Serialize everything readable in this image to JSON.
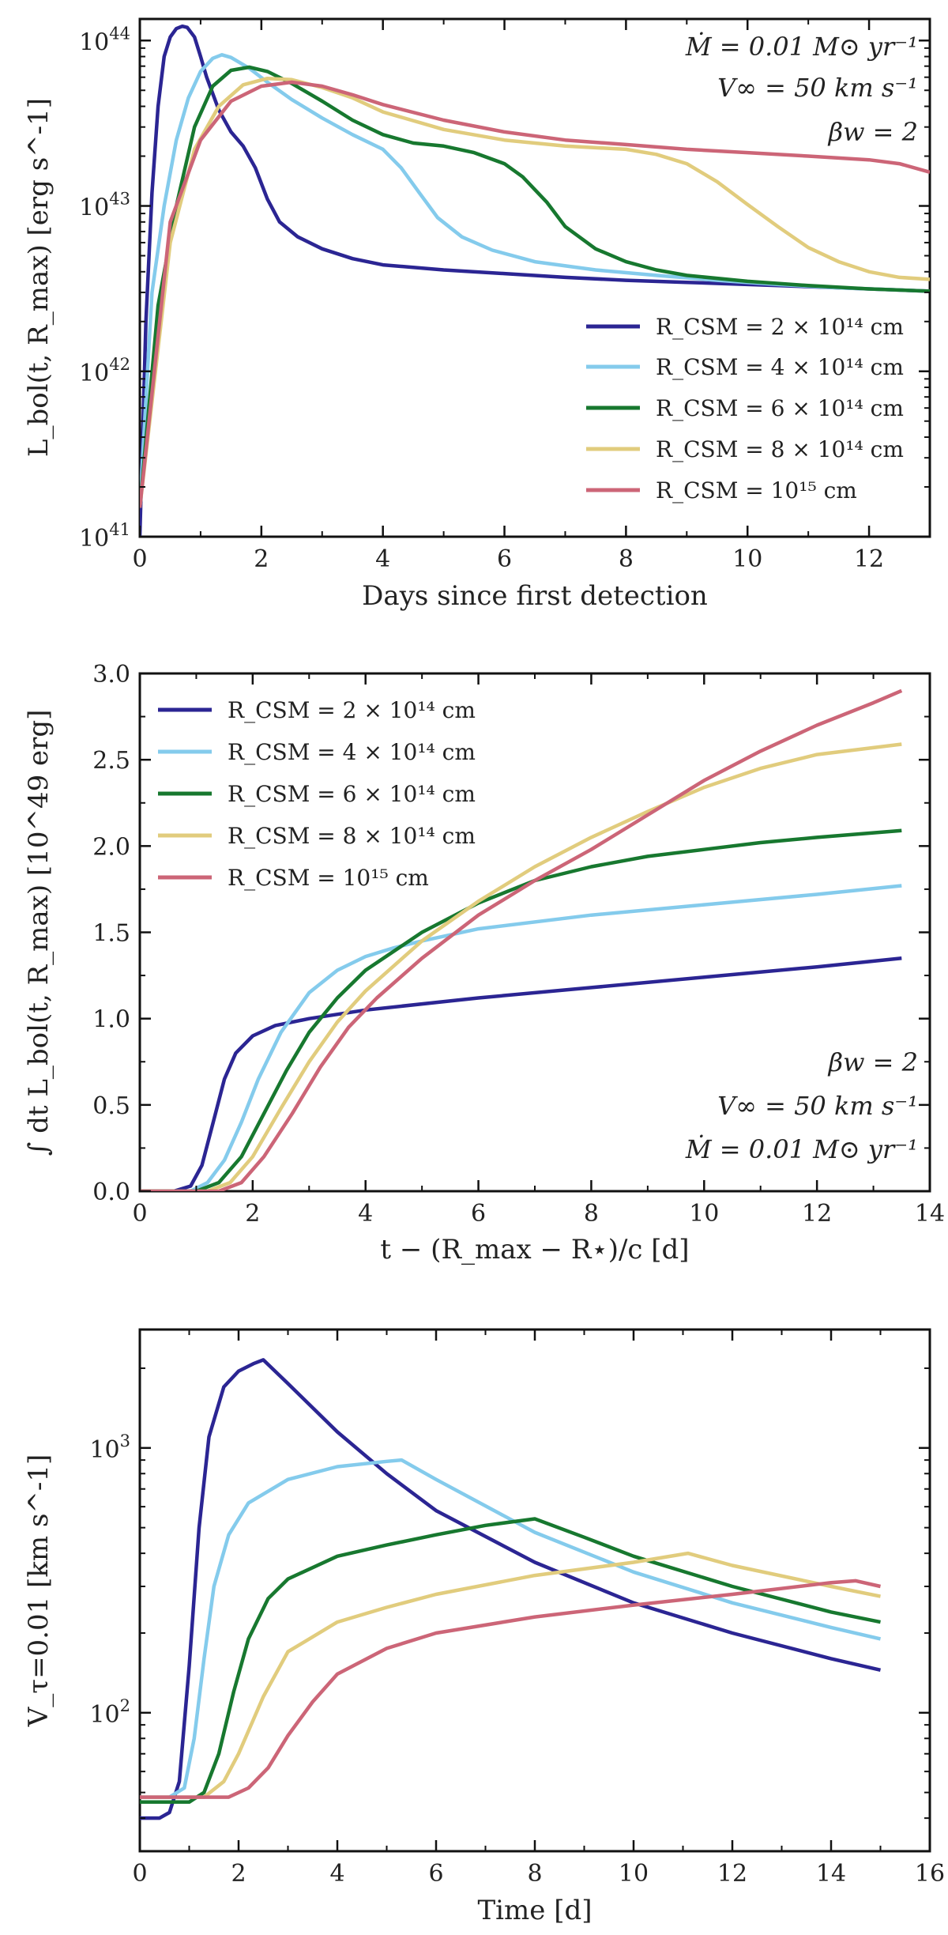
{
  "colors": {
    "navy": "#2b2593",
    "sky": "#84cbec",
    "green": "#17782f",
    "sand": "#e1cc7d",
    "rose": "#cc6577"
  },
  "chart_data": [
    {
      "type": "line",
      "yscale": "log",
      "xlabel": "Days since first detection",
      "ylabel": "L_bol(t, R_max) [erg s^-1]",
      "xlim": [
        0,
        13
      ],
      "ylim": [
        1e+41,
        1.35e+44
      ],
      "xticks": [
        "0",
        "2",
        "4",
        "6",
        "8",
        "10",
        "12"
      ],
      "yticks": [
        {
          "base": "10",
          "exp": "41",
          "value": 1e+41
        },
        {
          "base": "10",
          "exp": "42",
          "value": 1e+42
        },
        {
          "base": "10",
          "exp": "43",
          "value": 1e+43
        },
        {
          "base": "10",
          "exp": "44",
          "value": 1e+44
        }
      ],
      "legend_position": "right",
      "annotations": [
        "Ṁ = 0.01 M⊙ yr⁻¹",
        "V∞ = 50 km s⁻¹",
        "βw = 2"
      ],
      "series": [
        {
          "name": "R_CSM = 2 × 10¹⁴ cm",
          "color": "navy",
          "x": [
            0,
            0.1,
            0.2,
            0.3,
            0.4,
            0.5,
            0.6,
            0.7,
            0.78,
            0.9,
            1.0,
            1.1,
            1.3,
            1.5,
            1.7,
            1.9,
            2.1,
            2.3,
            2.6,
            3.0,
            3.5,
            4.0,
            5.0,
            6.0,
            7.0,
            8.0,
            9.0,
            10.0,
            11.0,
            12.0,
            13.0
          ],
          "y": [
            1e+41,
            2e+42,
            1.2e+43,
            4e+43,
            8e+43,
            1.05e+44,
            1.18e+44,
            1.22e+44,
            1.2e+44,
            1.05e+44,
            8e+43,
            6e+43,
            3.8e+43,
            2.8e+43,
            2.3e+43,
            1.7e+43,
            1.1e+43,
            8e+42,
            6.5e+42,
            5.5e+42,
            4.8e+42,
            4.4e+42,
            4.1e+42,
            3.9e+42,
            3.7e+42,
            3.55e+42,
            3.45e+42,
            3.35e+42,
            3.25e+42,
            3.15e+42,
            3.05e+42
          ]
        },
        {
          "name": "R_CSM = 4 × 10¹⁴ cm",
          "color": "sky",
          "x": [
            0,
            0.2,
            0.4,
            0.6,
            0.8,
            1.0,
            1.2,
            1.35,
            1.5,
            1.8,
            2.1,
            2.5,
            3.0,
            3.5,
            4.0,
            4.3,
            4.6,
            4.9,
            5.3,
            5.8,
            6.5,
            7.5,
            8.5,
            9.5,
            10.5,
            11.5,
            12.5,
            13.0
          ],
          "y": [
            1.5e+41,
            3e+42,
            1e+43,
            2.5e+43,
            4.5e+43,
            6.5e+43,
            7.8e+43,
            8.2e+43,
            7.9e+43,
            6.8e+43,
            5.6e+43,
            4.4e+43,
            3.4e+43,
            2.7e+43,
            2.2e+43,
            1.7e+43,
            1.2e+43,
            8.5e+42,
            6.5e+42,
            5.4e+42,
            4.6e+42,
            4.1e+42,
            3.8e+42,
            3.55e+42,
            3.35e+42,
            3.2e+42,
            3.1e+42,
            3.05e+42
          ]
        },
        {
          "name": "R_CSM = 6 × 10¹⁴ cm",
          "color": "green",
          "x": [
            0,
            0.3,
            0.6,
            0.9,
            1.2,
            1.5,
            1.8,
            2.1,
            2.5,
            3.0,
            3.5,
            4.0,
            4.5,
            5.0,
            5.5,
            6.0,
            6.3,
            6.7,
            7.0,
            7.5,
            8.0,
            8.5,
            9.0,
            10.0,
            11.0,
            12.0,
            13.0
          ],
          "y": [
            1.5e+41,
            2.5e+42,
            1e+43,
            3e+43,
            5.3e+43,
            6.6e+43,
            6.9e+43,
            6.5e+43,
            5.5e+43,
            4.3e+43,
            3.3e+43,
            2.7e+43,
            2.4e+43,
            2.3e+43,
            2.1e+43,
            1.8e+43,
            1.5e+43,
            1.05e+43,
            7.5e+42,
            5.5e+42,
            4.6e+42,
            4.1e+42,
            3.8e+42,
            3.5e+42,
            3.3e+42,
            3.15e+42,
            3.05e+42
          ]
        },
        {
          "name": "R_CSM = 8 × 10¹⁴ cm",
          "color": "sand",
          "x": [
            0,
            0.5,
            0.9,
            1.3,
            1.7,
            2.1,
            2.5,
            3.0,
            3.5,
            4.0,
            5.0,
            6.0,
            7.0,
            8.0,
            8.5,
            9.0,
            9.5,
            10.0,
            10.5,
            11.0,
            11.5,
            12.0,
            12.5,
            13.0
          ],
          "y": [
            1.5e+41,
            6e+42,
            2.2e+43,
            4e+43,
            5.4e+43,
            5.9e+43,
            5.8e+43,
            5.2e+43,
            4.5e+43,
            3.7e+43,
            2.9e+43,
            2.5e+43,
            2.3e+43,
            2.2e+43,
            2.05e+43,
            1.8e+43,
            1.4e+43,
            1.02e+43,
            7.5e+42,
            5.6e+42,
            4.6e+42,
            4e+42,
            3.7e+42,
            3.6e+42
          ]
        },
        {
          "name": "R_CSM = 10¹⁵ cm",
          "color": "rose",
          "x": [
            0,
            0.5,
            1.0,
            1.5,
            2.0,
            2.5,
            3.0,
            3.5,
            4.0,
            5.0,
            6.0,
            7.0,
            8.0,
            9.0,
            10.0,
            11.0,
            12.0,
            12.5,
            13.0
          ],
          "y": [
            1.5e+41,
            8e+42,
            2.5e+43,
            4.3e+43,
            5.3e+43,
            5.6e+43,
            5.3e+43,
            4.7e+43,
            4.1e+43,
            3.3e+43,
            2.8e+43,
            2.5e+43,
            2.35e+43,
            2.2e+43,
            2.1e+43,
            2e+43,
            1.9e+43,
            1.8e+43,
            1.6e+43
          ]
        }
      ]
    },
    {
      "type": "line",
      "yscale": "linear",
      "xlabel": "t − (R_max − R⋆)/c [d]",
      "ylabel": "∫ dt L_bol(t, R_max) [10^49 erg]",
      "xlim": [
        0,
        14
      ],
      "ylim": [
        0,
        3.0
      ],
      "xticks": [
        "0",
        "2",
        "4",
        "6",
        "8",
        "10",
        "12",
        "14"
      ],
      "yticks": [
        "0.0",
        "0.5",
        "1.0",
        "1.5",
        "2.0",
        "2.5",
        "3.0"
      ],
      "legend_position": "top-left",
      "annotations": [
        "βw = 2",
        "V∞ = 50 km s⁻¹",
        "Ṁ = 0.01 M⊙ yr⁻¹"
      ],
      "series": [
        {
          "name": "R_CSM = 2 × 10¹⁴ cm",
          "color": "navy",
          "x": [
            0,
            0.6,
            0.9,
            1.1,
            1.3,
            1.5,
            1.7,
            2.0,
            2.4,
            3.0,
            4.0,
            6.0,
            8.0,
            10.0,
            12.0,
            13.5
          ],
          "y": [
            0,
            0,
            0.03,
            0.15,
            0.4,
            0.65,
            0.8,
            0.9,
            0.96,
            1.0,
            1.05,
            1.12,
            1.18,
            1.24,
            1.3,
            1.35
          ]
        },
        {
          "name": "R_CSM = 4 × 10¹⁴ cm",
          "color": "sky",
          "x": [
            0,
            0.9,
            1.2,
            1.5,
            1.8,
            2.1,
            2.5,
            3.0,
            3.5,
            4.0,
            4.5,
            5.0,
            6.0,
            8.0,
            10.0,
            12.0,
            13.5
          ],
          "y": [
            0,
            0,
            0.05,
            0.18,
            0.4,
            0.65,
            0.92,
            1.15,
            1.28,
            1.36,
            1.41,
            1.45,
            1.52,
            1.6,
            1.66,
            1.72,
            1.77
          ]
        },
        {
          "name": "R_CSM = 6 × 10¹⁴ cm",
          "color": "green",
          "x": [
            0,
            1.0,
            1.4,
            1.8,
            2.2,
            2.6,
            3.0,
            3.5,
            4.0,
            5.0,
            6.0,
            7.0,
            8.0,
            9.0,
            10.0,
            11.0,
            12.0,
            13.5
          ],
          "y": [
            0,
            0,
            0.05,
            0.2,
            0.45,
            0.7,
            0.92,
            1.12,
            1.28,
            1.5,
            1.67,
            1.8,
            1.88,
            1.94,
            1.98,
            2.02,
            2.05,
            2.09
          ]
        },
        {
          "name": "R_CSM = 8 × 10¹⁴ cm",
          "color": "sand",
          "x": [
            0,
            1.2,
            1.6,
            2.0,
            2.5,
            3.0,
            3.5,
            4.0,
            5.0,
            6.0,
            7.0,
            8.0,
            9.0,
            10.0,
            11.0,
            12.0,
            13.5
          ],
          "y": [
            0,
            0,
            0.05,
            0.2,
            0.48,
            0.75,
            0.98,
            1.16,
            1.45,
            1.68,
            1.88,
            2.05,
            2.2,
            2.34,
            2.45,
            2.53,
            2.59
          ]
        },
        {
          "name": "R_CSM = 10¹⁵ cm",
          "color": "rose",
          "x": [
            0,
            1.4,
            1.8,
            2.2,
            2.7,
            3.2,
            3.7,
            4.2,
            5.0,
            6.0,
            7.0,
            8.0,
            9.0,
            10.0,
            11.0,
            12.0,
            13.0,
            13.5
          ],
          "y": [
            0,
            0,
            0.05,
            0.2,
            0.45,
            0.72,
            0.95,
            1.12,
            1.35,
            1.6,
            1.8,
            1.98,
            2.18,
            2.38,
            2.55,
            2.7,
            2.83,
            2.9
          ]
        }
      ]
    },
    {
      "type": "line",
      "yscale": "log",
      "xlabel": "Time [d]",
      "ylabel": "V_τ=0.01 [km s^-1]",
      "xlim": [
        0,
        16
      ],
      "ylim": [
        30,
        2800
      ],
      "xticks": [
        "0",
        "2",
        "4",
        "6",
        "8",
        "10",
        "12",
        "14",
        "16"
      ],
      "yticks": [
        {
          "base": "10",
          "exp": "2",
          "value": 100
        },
        {
          "base": "10",
          "exp": "3",
          "value": 1000
        }
      ],
      "series": [
        {
          "name": "R_CSM = 2 × 10¹⁴ cm",
          "color": "navy",
          "x": [
            0,
            0.4,
            0.6,
            0.8,
            1.0,
            1.2,
            1.4,
            1.7,
            2.0,
            2.3,
            2.5,
            3.0,
            4.0,
            5.0,
            6.0,
            8.0,
            10.0,
            12.0,
            14.0,
            15.0
          ],
          "y": [
            40,
            40,
            42,
            55,
            150,
            500,
            1100,
            1700,
            1950,
            2080,
            2150,
            1750,
            1150,
            800,
            580,
            370,
            260,
            200,
            160,
            145
          ]
        },
        {
          "name": "R_CSM = 4 × 10¹⁴ cm",
          "color": "sky",
          "x": [
            0,
            0.6,
            0.9,
            1.1,
            1.3,
            1.5,
            1.8,
            2.2,
            3.0,
            4.0,
            5.0,
            5.3,
            6.0,
            8.0,
            10.0,
            12.0,
            14.0,
            15.0
          ],
          "y": [
            48,
            48,
            52,
            80,
            160,
            300,
            470,
            620,
            760,
            850,
            890,
            900,
            760,
            480,
            340,
            260,
            210,
            190
          ]
        },
        {
          "name": "R_CSM = 6 × 10¹⁴ cm",
          "color": "green",
          "x": [
            0,
            1.0,
            1.3,
            1.6,
            1.9,
            2.2,
            2.6,
            3.0,
            4.0,
            5.0,
            6.0,
            7.0,
            8.0,
            9.0,
            10.0,
            12.0,
            14.0,
            15.0
          ],
          "y": [
            46,
            46,
            50,
            70,
            120,
            190,
            270,
            320,
            390,
            430,
            470,
            510,
            540,
            460,
            390,
            300,
            240,
            220
          ]
        },
        {
          "name": "R_CSM = 8 × 10¹⁴ cm",
          "color": "sand",
          "x": [
            0,
            1.3,
            1.7,
            2.0,
            2.5,
            3.0,
            4.0,
            5.0,
            6.0,
            8.0,
            10.0,
            11.1,
            12.0,
            14.0,
            15.0
          ],
          "y": [
            48,
            48,
            55,
            70,
            115,
            170,
            220,
            250,
            280,
            330,
            370,
            400,
            360,
            300,
            275
          ]
        },
        {
          "name": "R_CSM = 10¹⁵ cm",
          "color": "rose",
          "x": [
            0,
            1.8,
            2.2,
            2.6,
            3.0,
            3.5,
            4.0,
            5.0,
            6.0,
            8.0,
            10.0,
            12.0,
            14.0,
            14.5,
            15.0
          ],
          "y": [
            48,
            48,
            52,
            62,
            82,
            110,
            140,
            175,
            200,
            230,
            255,
            280,
            310,
            315,
            300
          ]
        }
      ]
    }
  ]
}
